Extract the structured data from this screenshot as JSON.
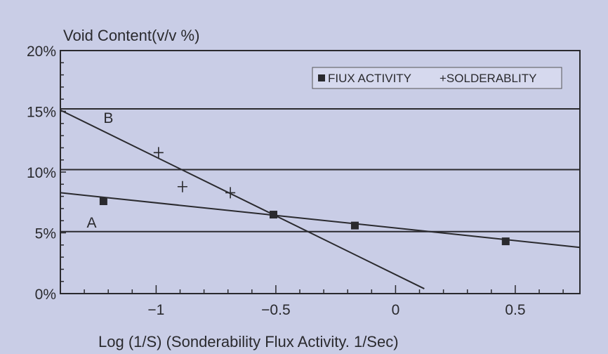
{
  "chart_data": {
    "type": "scatter",
    "title": "",
    "ylabel": "Void Content(v/v %)",
    "xlabel": "Log (1/S) (Sonderability Flux Activity. 1/Sec)",
    "xlim": [
      -1.4,
      0.77
    ],
    "ylim": [
      0,
      20
    ],
    "x_ticks": [
      -1,
      -0.5,
      0,
      0.5
    ],
    "x_tick_labels": [
      "−1",
      "−0.5",
      "0",
      "0.5"
    ],
    "y_ticks": [
      0,
      5,
      10,
      15,
      20
    ],
    "y_tick_labels": [
      "0%",
      "5%",
      "10%",
      "15%",
      "20%"
    ],
    "grid": false,
    "legend": "top-right",
    "series": [
      {
        "name": "FIUX ACTIVITY",
        "marker": "square",
        "x": [
          -1.22,
          -0.51,
          -0.17,
          0.46
        ],
        "y": [
          7.6,
          6.5,
          5.6,
          4.3
        ]
      },
      {
        "name": "SOLDERABLITY",
        "marker": "plus",
        "x": [
          -0.99,
          -0.89,
          -0.69
        ],
        "y": [
          11.6,
          8.8,
          8.3
        ]
      }
    ],
    "lines": [
      {
        "label": "A",
        "x": [
          -1.4,
          0.77
        ],
        "y": [
          8.3,
          3.8
        ]
      },
      {
        "label": "B",
        "x": [
          -1.4,
          0.12
        ],
        "y": [
          15.1,
          0.4
        ]
      }
    ],
    "reference_lines": [
      15.2,
      10.2,
      5.1
    ],
    "legend_labels": {
      "flux": "FIUX ACTIVITY",
      "solder": "+SOLDERABLITY"
    },
    "colors": {
      "ink": "#2a2a2e",
      "background": "#c9cde6"
    }
  }
}
